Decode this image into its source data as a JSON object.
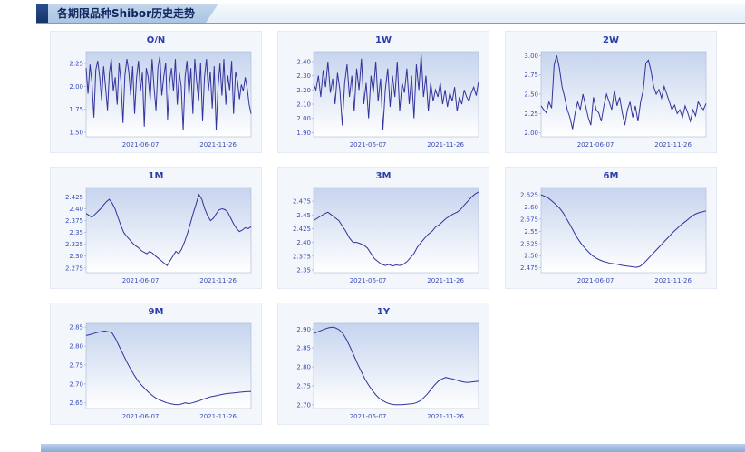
{
  "header": {
    "title": "各期限品种Shibor历史走势"
  },
  "colors": {
    "line": "#33339b",
    "axis_text": "#3b4db5",
    "title_text": "#2d3ea8",
    "plot_top": "#c6d4ee",
    "plot_bottom": "#ffffff",
    "plot_border": "#a9b8d6",
    "header_text": "#10265e",
    "header_accent": "#16336b"
  },
  "chart_data": [
    {
      "type": "line",
      "title": "O/N",
      "xlabel": "",
      "ylabel": "",
      "ylim": [
        1.45,
        2.38
      ],
      "ticks": [
        "1.50",
        "1.75",
        "2.00",
        "2.25"
      ],
      "x_labels": [
        "2021-06-07",
        "2021-11-26"
      ],
      "x_label_pos": [
        0.33,
        0.8
      ],
      "values": [
        2.2,
        1.92,
        2.24,
        2.05,
        1.66,
        2.18,
        2.28,
        2.1,
        1.85,
        2.22,
        2.0,
        1.74,
        2.15,
        2.3,
        1.95,
        2.1,
        1.8,
        2.26,
        2.05,
        1.6,
        2.12,
        2.3,
        2.16,
        1.9,
        2.22,
        1.7,
        2.1,
        2.28,
        1.95,
        2.15,
        1.56,
        2.2,
        2.1,
        1.85,
        2.3,
        2.0,
        1.74,
        2.2,
        2.33,
        1.9,
        2.1,
        2.26,
        1.64,
        2.05,
        2.2,
        1.95,
        2.3,
        1.8,
        2.15,
        2.0,
        1.52,
        2.1,
        2.28,
        1.9,
        2.2,
        1.7,
        2.3,
        2.05,
        1.85,
        2.26,
        1.62,
        2.1,
        2.3,
        1.95,
        2.16,
        1.76,
        2.22,
        1.52,
        2.0,
        2.25,
        1.9,
        2.3,
        1.8,
        2.12,
        1.96,
        2.28,
        1.7,
        2.16,
        2.06,
        1.86,
        2.02,
        1.95,
        2.1,
        1.98,
        1.8,
        1.7
      ]
    },
    {
      "type": "line",
      "title": "1W",
      "xlabel": "",
      "ylabel": "",
      "ylim": [
        1.87,
        2.47
      ],
      "ticks": [
        "1.90",
        "2.00",
        "2.10",
        "2.20",
        "2.30",
        "2.40"
      ],
      "x_labels": [
        "2021-06-07",
        "2021-11-26"
      ],
      "x_label_pos": [
        0.33,
        0.8
      ],
      "values": [
        2.24,
        2.2,
        2.3,
        2.15,
        2.34,
        2.22,
        2.4,
        2.18,
        2.28,
        2.1,
        2.32,
        2.2,
        1.95,
        2.25,
        2.38,
        2.15,
        2.3,
        2.05,
        2.35,
        2.2,
        2.42,
        2.1,
        2.25,
        2.0,
        2.3,
        2.18,
        2.4,
        2.12,
        2.28,
        1.92,
        2.2,
        2.35,
        2.08,
        2.3,
        2.15,
        2.4,
        2.05,
        2.25,
        2.18,
        2.35,
        2.1,
        2.3,
        2.0,
        2.38,
        2.2,
        2.45,
        2.15,
        2.3,
        2.05,
        2.25,
        2.12,
        2.2,
        2.15,
        2.25,
        2.1,
        2.2,
        2.08,
        2.18,
        2.12,
        2.22,
        2.05,
        2.15,
        2.1,
        2.2,
        2.15,
        2.12,
        2.18,
        2.22,
        2.16,
        2.26
      ]
    },
    {
      "type": "line",
      "title": "2W",
      "xlabel": "",
      "ylabel": "",
      "ylim": [
        1.95,
        3.05
      ],
      "ticks": [
        "2.00",
        "2.25",
        "2.50",
        "2.75",
        "3.00"
      ],
      "x_labels": [
        "2021-06-07",
        "2021-11-26"
      ],
      "x_label_pos": [
        0.33,
        0.8
      ],
      "values": [
        2.35,
        2.3,
        2.26,
        2.4,
        2.32,
        2.88,
        3.0,
        2.84,
        2.6,
        2.46,
        2.3,
        2.2,
        2.05,
        2.26,
        2.4,
        2.3,
        2.5,
        2.35,
        2.2,
        2.1,
        2.46,
        2.3,
        2.26,
        2.15,
        2.35,
        2.5,
        2.4,
        2.3,
        2.55,
        2.35,
        2.46,
        2.26,
        2.1,
        2.3,
        2.4,
        2.2,
        2.35,
        2.15,
        2.4,
        2.55,
        2.9,
        2.94,
        2.8,
        2.6,
        2.5,
        2.56,
        2.45,
        2.6,
        2.5,
        2.4,
        2.3,
        2.36,
        2.25,
        2.3,
        2.2,
        2.35,
        2.26,
        2.15,
        2.3,
        2.22,
        2.4,
        2.34,
        2.3,
        2.38
      ]
    },
    {
      "type": "line",
      "title": "1M",
      "xlabel": "",
      "ylabel": "",
      "ylim": [
        2.265,
        2.445
      ],
      "ticks": [
        "2.275",
        "2.30",
        "2.325",
        "2.35",
        "2.375",
        "2.40",
        "2.425"
      ],
      "x_labels": [
        "2021-06-07",
        "2021-11-26"
      ],
      "x_label_pos": [
        0.33,
        0.8
      ],
      "values": [
        2.39,
        2.386,
        2.382,
        2.388,
        2.394,
        2.4,
        2.408,
        2.415,
        2.42,
        2.412,
        2.4,
        2.382,
        2.365,
        2.35,
        2.342,
        2.335,
        2.328,
        2.322,
        2.318,
        2.312,
        2.308,
        2.305,
        2.31,
        2.306,
        2.3,
        2.295,
        2.29,
        2.285,
        2.28,
        2.29,
        2.3,
        2.31,
        2.305,
        2.315,
        2.33,
        2.348,
        2.368,
        2.39,
        2.41,
        2.43,
        2.42,
        2.4,
        2.385,
        2.375,
        2.38,
        2.39,
        2.398,
        2.4,
        2.398,
        2.392,
        2.38,
        2.368,
        2.358,
        2.352,
        2.355,
        2.36,
        2.358,
        2.362
      ]
    },
    {
      "type": "line",
      "title": "3M",
      "xlabel": "",
      "ylabel": "",
      "ylim": [
        2.345,
        2.5
      ],
      "ticks": [
        "2.35",
        "2.375",
        "2.40",
        "2.425",
        "2.45",
        "2.475"
      ],
      "x_labels": [
        "2021-06-07",
        "2021-11-26"
      ],
      "x_label_pos": [
        0.33,
        0.8
      ],
      "values": [
        2.44,
        2.444,
        2.448,
        2.452,
        2.455,
        2.45,
        2.445,
        2.44,
        2.43,
        2.42,
        2.408,
        2.4,
        2.4,
        2.398,
        2.395,
        2.39,
        2.38,
        2.37,
        2.365,
        2.36,
        2.358,
        2.36,
        2.357,
        2.359,
        2.358,
        2.36,
        2.365,
        2.372,
        2.38,
        2.392,
        2.4,
        2.408,
        2.415,
        2.42,
        2.428,
        2.432,
        2.438,
        2.444,
        2.448,
        2.452,
        2.455,
        2.46,
        2.468,
        2.475,
        2.482,
        2.488,
        2.492
      ]
    },
    {
      "type": "line",
      "title": "6M",
      "xlabel": "",
      "ylabel": "",
      "ylim": [
        2.465,
        2.64
      ],
      "ticks": [
        "2.475",
        "2.50",
        "2.525",
        "2.55",
        "2.575",
        "2.60",
        "2.625"
      ],
      "x_labels": [
        "2021-06-07",
        "2021-11-26"
      ],
      "x_label_pos": [
        0.33,
        0.8
      ],
      "values": [
        2.625,
        2.622,
        2.618,
        2.612,
        2.605,
        2.598,
        2.588,
        2.575,
        2.562,
        2.548,
        2.535,
        2.524,
        2.515,
        2.507,
        2.5,
        2.495,
        2.491,
        2.488,
        2.486,
        2.484,
        2.483,
        2.482,
        2.48,
        2.479,
        2.478,
        2.477,
        2.476,
        2.478,
        2.484,
        2.492,
        2.5,
        2.508,
        2.516,
        2.524,
        2.532,
        2.54,
        2.548,
        2.555,
        2.562,
        2.568,
        2.574,
        2.58,
        2.585,
        2.588,
        2.59,
        2.592
      ]
    },
    {
      "type": "line",
      "title": "9M",
      "xlabel": "",
      "ylabel": "",
      "ylim": [
        2.635,
        2.86
      ],
      "ticks": [
        "2.65",
        "2.70",
        "2.75",
        "2.80",
        "2.85"
      ],
      "x_labels": [
        "2021-06-07",
        "2021-11-26"
      ],
      "x_label_pos": [
        0.33,
        0.8
      ],
      "values": [
        2.828,
        2.83,
        2.833,
        2.836,
        2.838,
        2.84,
        2.838,
        2.836,
        2.82,
        2.8,
        2.78,
        2.76,
        2.742,
        2.725,
        2.71,
        2.698,
        2.688,
        2.678,
        2.67,
        2.663,
        2.658,
        2.654,
        2.65,
        2.648,
        2.646,
        2.645,
        2.647,
        2.65,
        2.648,
        2.65,
        2.653,
        2.656,
        2.66,
        2.663,
        2.666,
        2.668,
        2.67,
        2.672,
        2.674,
        2.675,
        2.676,
        2.677,
        2.678,
        2.679,
        2.68,
        2.68
      ]
    },
    {
      "type": "line",
      "title": "1Y",
      "xlabel": "",
      "ylabel": "",
      "ylim": [
        2.69,
        2.915
      ],
      "ticks": [
        "2.70",
        "2.75",
        "2.80",
        "2.85",
        "2.90"
      ],
      "x_labels": [
        "2021-06-07",
        "2021-11-26"
      ],
      "x_label_pos": [
        0.33,
        0.8
      ],
      "values": [
        2.888,
        2.892,
        2.896,
        2.9,
        2.903,
        2.905,
        2.903,
        2.898,
        2.888,
        2.872,
        2.852,
        2.83,
        2.808,
        2.788,
        2.768,
        2.752,
        2.738,
        2.726,
        2.716,
        2.71,
        2.705,
        2.702,
        2.7,
        2.7,
        2.7,
        2.701,
        2.702,
        2.703,
        2.705,
        2.71,
        2.718,
        2.728,
        2.74,
        2.752,
        2.762,
        2.768,
        2.772,
        2.77,
        2.768,
        2.765,
        2.762,
        2.76,
        2.759,
        2.76,
        2.761,
        2.762
      ]
    }
  ]
}
